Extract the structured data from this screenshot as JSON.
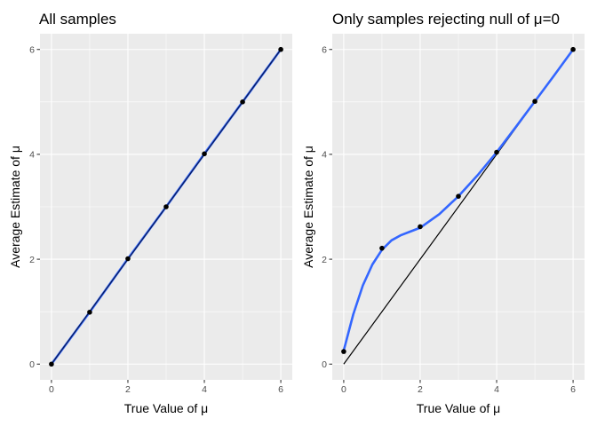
{
  "chart_data": [
    {
      "type": "scatter",
      "title": "All samples",
      "xlabel": "True Value of μ",
      "ylabel": "Average Estimate of μ",
      "xlim": [
        -0.3,
        6.3
      ],
      "ylim": [
        -0.3,
        6.3
      ],
      "xticks": [
        0,
        2,
        4,
        6
      ],
      "yticks": [
        0,
        2,
        4,
        6
      ],
      "grid": true,
      "points": {
        "x": [
          0,
          1,
          2,
          3,
          4,
          5,
          6
        ],
        "y": [
          0.0,
          0.99,
          2.01,
          3.0,
          4.01,
          5.0,
          6.0
        ],
        "color": "#000000"
      },
      "smooth_line": {
        "x": [
          0,
          1,
          2,
          3,
          4,
          5,
          6
        ],
        "y": [
          0.0,
          0.99,
          2.01,
          3.0,
          4.01,
          5.0,
          6.0
        ],
        "color": "#3366ff"
      },
      "reference_line": {
        "x": [
          0,
          6
        ],
        "y": [
          0,
          6
        ],
        "color": "#000000"
      }
    },
    {
      "type": "scatter",
      "title": "Only samples rejecting null of μ=0",
      "xlabel": "True Value of μ",
      "ylabel": "Average Estimate of μ",
      "xlim": [
        -0.3,
        6.3
      ],
      "ylim": [
        -0.3,
        6.3
      ],
      "xticks": [
        0,
        2,
        4,
        6
      ],
      "yticks": [
        0,
        2,
        4,
        6
      ],
      "grid": true,
      "points": {
        "x": [
          0,
          1,
          2,
          3,
          4,
          5,
          6
        ],
        "y": [
          0.24,
          2.21,
          2.62,
          3.2,
          4.04,
          5.01,
          6.0
        ],
        "color": "#000000"
      },
      "smooth_line": {
        "x": [
          0,
          0.25,
          0.5,
          0.75,
          1,
          1.25,
          1.5,
          1.75,
          2,
          2.5,
          3,
          3.5,
          4,
          4.5,
          5,
          5.5,
          6
        ],
        "y": [
          0.26,
          0.95,
          1.5,
          1.9,
          2.18,
          2.36,
          2.46,
          2.53,
          2.6,
          2.86,
          3.2,
          3.6,
          4.04,
          4.52,
          5.01,
          5.5,
          6.0
        ],
        "color": "#3366ff"
      },
      "reference_line": {
        "x": [
          0,
          6
        ],
        "y": [
          0,
          6
        ],
        "color": "#000000"
      }
    }
  ]
}
